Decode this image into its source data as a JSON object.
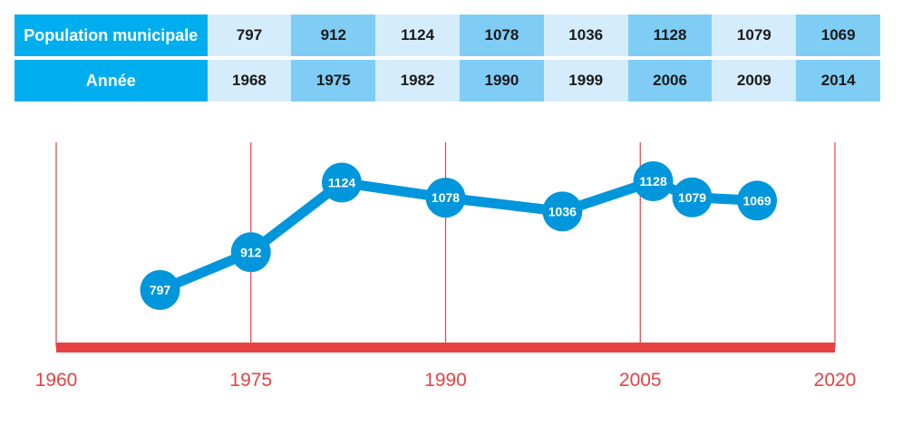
{
  "table": {
    "population_header": "Population municipale",
    "year_header": "Année",
    "population": [
      "797",
      "912",
      "1124",
      "1078",
      "1036",
      "1128",
      "1079",
      "1069"
    ],
    "years": [
      "1968",
      "1975",
      "1982",
      "1990",
      "1999",
      "2006",
      "2009",
      "2014"
    ]
  },
  "colors": {
    "header": "#00aeef",
    "cell_light": "#d4ecfb",
    "cell_mid": "#7fcdf5",
    "line": "#0096dc",
    "axis": "#e84142"
  },
  "chart_data": {
    "type": "line",
    "x": [
      1968,
      1975,
      1982,
      1990,
      1999,
      2006,
      2009,
      2014
    ],
    "series": [
      {
        "values": [
          797,
          912,
          1124,
          1078,
          1036,
          1128,
          1079,
          1069
        ]
      }
    ],
    "xlim": [
      1960,
      2020
    ],
    "xticks": [
      1960,
      1975,
      1990,
      2005,
      2020
    ],
    "ylim": [
      600,
      1250
    ],
    "data_labels": true,
    "grid": "vertical"
  }
}
